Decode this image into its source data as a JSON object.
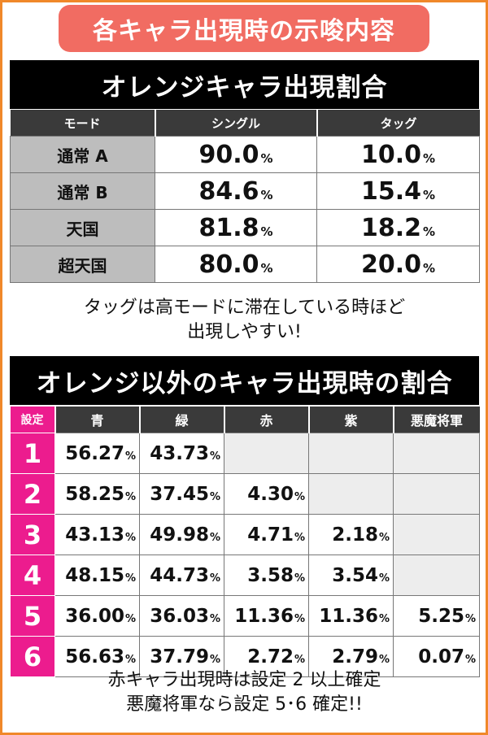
{
  "banner": "各キャラ出現時の示唆内容",
  "orange": {
    "title": "オレンジキャラ出現割合",
    "headers": [
      "モード",
      "シングル",
      "タッグ"
    ],
    "rows": [
      {
        "mode": "通常 A",
        "single": "90.0",
        "tag": "10.0"
      },
      {
        "mode": "通常 B",
        "single": "84.6",
        "tag": "15.4"
      },
      {
        "mode": "天国",
        "single": "81.8",
        "tag": "18.2"
      },
      {
        "mode": "超天国",
        "single": "80.0",
        "tag": "20.0"
      }
    ],
    "note_line1": "タッグは高モードに滞在している時ほど",
    "note_line2": "出現しやすい!"
  },
  "other": {
    "title": "オレンジ以外のキャラ出現時の割合",
    "headers": [
      "設定",
      "青",
      "緑",
      "赤",
      "紫",
      "悪魔将軍"
    ],
    "rows": [
      {
        "setting": "1",
        "values": [
          "56.27",
          "43.73",
          "",
          "",
          ""
        ]
      },
      {
        "setting": "2",
        "values": [
          "58.25",
          "37.45",
          "4.30",
          "",
          ""
        ]
      },
      {
        "setting": "3",
        "values": [
          "43.13",
          "49.98",
          "4.71",
          "2.18",
          ""
        ]
      },
      {
        "setting": "4",
        "values": [
          "48.15",
          "44.73",
          "3.58",
          "3.54",
          ""
        ]
      },
      {
        "setting": "5",
        "values": [
          "36.00",
          "36.03",
          "11.36",
          "11.36",
          "5.25"
        ]
      },
      {
        "setting": "6",
        "values": [
          "56.63",
          "37.79",
          "2.72",
          "2.79",
          "0.07"
        ]
      }
    ],
    "note_line1": "赤キャラ出現時は設定 2 以上確定",
    "note_line2": "悪魔将軍なら設定 5･6 確定!!"
  },
  "percent_sign": "%",
  "colors": {
    "banner": "#f16c62",
    "frame": "#f0882a",
    "setting": "#ec1c8e"
  }
}
